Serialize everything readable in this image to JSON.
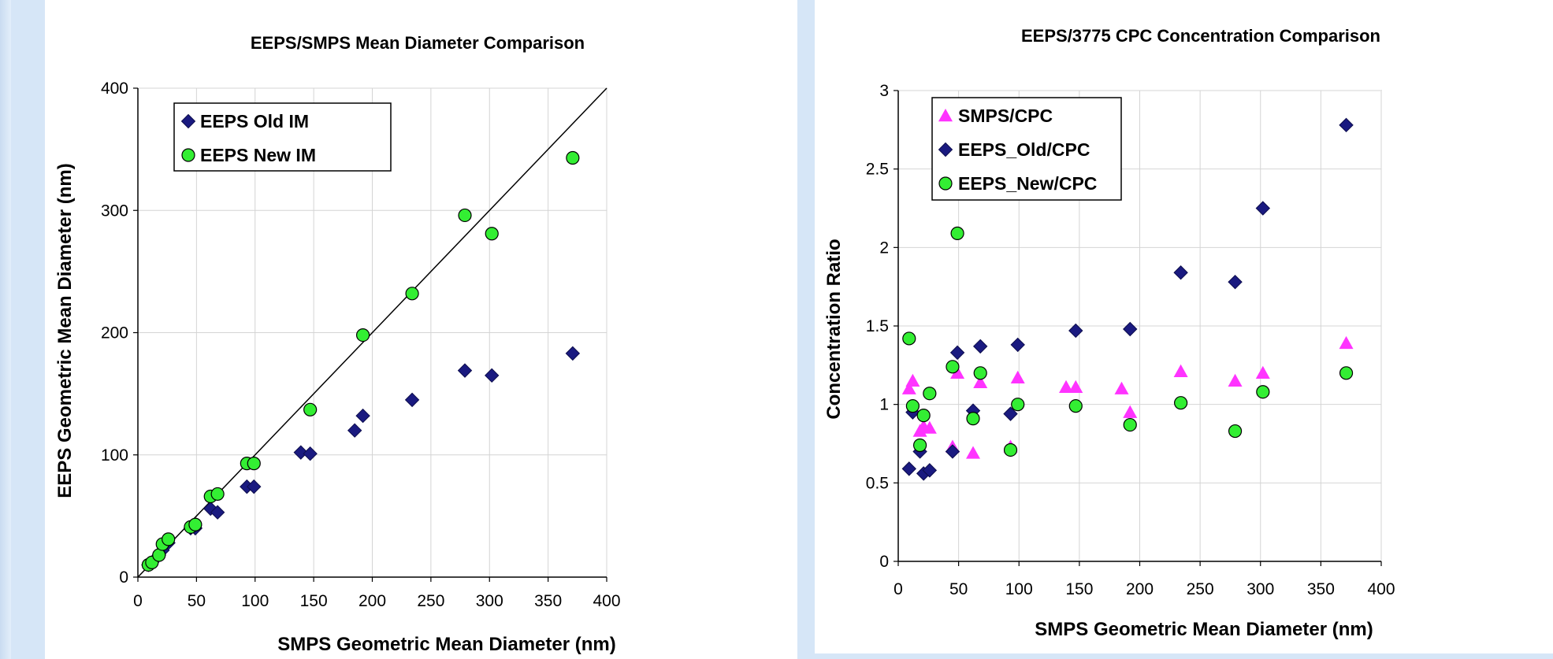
{
  "chart_data": [
    {
      "type": "scatter",
      "title": "EEPS/SMPS Mean Diameter Comparison",
      "xlabel": "SMPS Geometric Mean Diameter (nm)",
      "ylabel": "EEPS Geometric Mean Diameter (nm)",
      "xlim": [
        0,
        400
      ],
      "ylim": [
        0,
        400
      ],
      "x_ticks": [
        "0",
        "50",
        "100",
        "150",
        "200",
        "250",
        "300",
        "350",
        "400"
      ],
      "y_ticks": [
        "0",
        "100",
        "200",
        "300",
        "400"
      ],
      "grid": true,
      "legend_position": "top-left",
      "reference_line": "y = x",
      "series": [
        {
          "name": "EEPS Old IM",
          "marker": "diamond",
          "color": "#1a1a80",
          "points": [
            [
              9,
              10
            ],
            [
              12,
              12
            ],
            [
              18,
              18
            ],
            [
              21,
              22
            ],
            [
              26,
              28
            ],
            [
              45,
              40
            ],
            [
              49,
              40
            ],
            [
              62,
              56
            ],
            [
              68,
              53
            ],
            [
              93,
              74
            ],
            [
              99,
              74
            ],
            [
              139,
              102
            ],
            [
              147,
              101
            ],
            [
              185,
              120
            ],
            [
              192,
              132
            ],
            [
              234,
              145
            ],
            [
              279,
              169
            ],
            [
              302,
              165
            ],
            [
              371,
              183
            ]
          ]
        },
        {
          "name": "EEPS New IM",
          "marker": "circle",
          "color": "#33ee33",
          "points": [
            [
              9,
              10
            ],
            [
              12,
              12
            ],
            [
              18,
              18
            ],
            [
              21,
              27
            ],
            [
              26,
              31
            ],
            [
              45,
              41
            ],
            [
              49,
              43
            ],
            [
              62,
              66
            ],
            [
              68,
              68
            ],
            [
              93,
              93
            ],
            [
              99,
              93
            ],
            [
              147,
              137
            ],
            [
              192,
              198
            ],
            [
              234,
              232
            ],
            [
              279,
              296
            ],
            [
              302,
              281
            ],
            [
              371,
              343
            ]
          ]
        }
      ]
    },
    {
      "type": "scatter",
      "title": "EEPS/3775 CPC Concentration Comparison",
      "xlabel": "SMPS Geometric Mean Diameter (nm)",
      "ylabel": "Concentration Ratio",
      "xlim": [
        0,
        400
      ],
      "ylim": [
        0,
        3
      ],
      "x_ticks": [
        "0",
        "50",
        "100",
        "150",
        "200",
        "250",
        "300",
        "350",
        "400"
      ],
      "y_ticks": [
        "0",
        "0.5",
        "1",
        "1.5",
        "2",
        "2.5",
        "3"
      ],
      "grid": true,
      "legend_position": "top-left",
      "series": [
        {
          "name": "SMPS/CPC",
          "marker": "triangle",
          "color": "#ff33ff",
          "points": [
            [
              9,
              1.1
            ],
            [
              12,
              1.15
            ],
            [
              18,
              0.83
            ],
            [
              21,
              0.86
            ],
            [
              26,
              0.85
            ],
            [
              45,
              0.73
            ],
            [
              49,
              1.2
            ],
            [
              62,
              0.69
            ],
            [
              68,
              1.14
            ],
            [
              93,
              0.73
            ],
            [
              99,
              1.17
            ],
            [
              139,
              1.11
            ],
            [
              147,
              1.11
            ],
            [
              185,
              1.1
            ],
            [
              192,
              0.95
            ],
            [
              234,
              1.21
            ],
            [
              279,
              1.15
            ],
            [
              302,
              1.2
            ],
            [
              371,
              1.39
            ]
          ]
        },
        {
          "name": "EEPS_Old/CPC",
          "marker": "diamond",
          "color": "#1a1a80",
          "points": [
            [
              9,
              0.59
            ],
            [
              12,
              0.95
            ],
            [
              18,
              0.7
            ],
            [
              21,
              0.56
            ],
            [
              26,
              0.58
            ],
            [
              45,
              0.7
            ],
            [
              49,
              1.33
            ],
            [
              62,
              0.96
            ],
            [
              68,
              1.37
            ],
            [
              93,
              0.94
            ],
            [
              99,
              1.38
            ],
            [
              147,
              1.47
            ],
            [
              192,
              1.48
            ],
            [
              234,
              1.84
            ],
            [
              279,
              1.78
            ],
            [
              302,
              2.25
            ],
            [
              371,
              2.78
            ]
          ]
        },
        {
          "name": "EEPS_New/CPC",
          "marker": "circle",
          "color": "#33ee33",
          "points": [
            [
              9,
              1.42
            ],
            [
              12,
              0.99
            ],
            [
              18,
              0.74
            ],
            [
              21,
              0.93
            ],
            [
              26,
              1.07
            ],
            [
              45,
              1.24
            ],
            [
              49,
              2.09
            ],
            [
              62,
              0.91
            ],
            [
              68,
              1.2
            ],
            [
              93,
              0.71
            ],
            [
              99,
              1.0
            ],
            [
              147,
              0.99
            ],
            [
              192,
              0.87
            ],
            [
              234,
              1.01
            ],
            [
              279,
              0.83
            ],
            [
              302,
              1.08
            ],
            [
              371,
              1.2
            ]
          ]
        }
      ]
    }
  ]
}
